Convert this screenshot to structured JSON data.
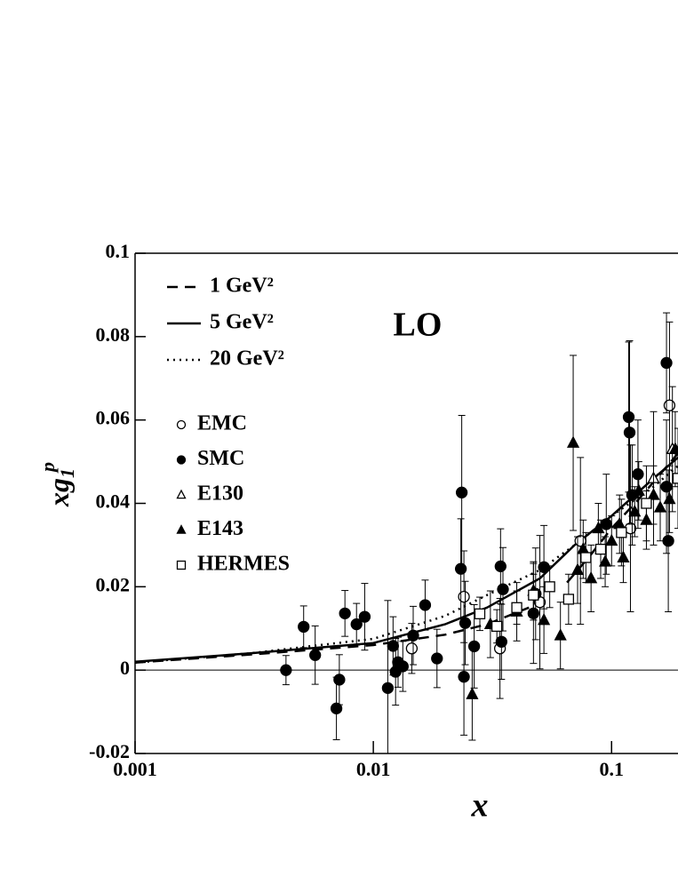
{
  "chart_data": {
    "type": "scatter",
    "annotation": "LO",
    "xlabel": "x",
    "ylabel": {
      "text": "xg",
      "subscript": "1",
      "superscript": "p"
    },
    "xscale": "log",
    "xlim": [
      0.001,
      0.19
    ],
    "ylim": [
      -0.02,
      0.1
    ],
    "xticks": [
      0.001,
      0.01,
      0.1
    ],
    "yticks": [
      0.1,
      0.08,
      0.06,
      0.04,
      0.02,
      0,
      -0.02
    ],
    "zero_line": true,
    "lines": [
      {
        "name": "1 GeV²",
        "dash": "dashed",
        "color": "#000",
        "x": [
          0.001,
          0.003,
          0.01,
          0.02,
          0.03,
          0.045,
          null,
          0.065,
          0.08,
          0.1,
          0.13,
          0.16,
          0.19
        ],
        "values": [
          0.0018,
          0.0037,
          0.006,
          0.0085,
          0.011,
          0.015,
          null,
          0.021,
          0.027,
          0.034,
          0.041,
          0.047,
          0.052
        ]
      },
      {
        "name": "5 GeV²",
        "dash": "solid",
        "color": "#000",
        "x": [
          0.001,
          0.003,
          0.01,
          0.02,
          0.03,
          0.05,
          0.07,
          0.1,
          0.15,
          0.19
        ],
        "values": [
          0.002,
          0.004,
          0.0065,
          0.011,
          0.015,
          0.022,
          0.03,
          0.037,
          0.046,
          0.051
        ]
      },
      {
        "name": "20 GeV²",
        "dash": "dotted",
        "color": "#000",
        "x": [
          0.001,
          0.003,
          0.01,
          0.02,
          0.03,
          0.05,
          0.07,
          0.1,
          0.15,
          0.19
        ],
        "values": [
          0.0018,
          0.004,
          0.0075,
          0.013,
          0.018,
          0.024,
          0.03,
          0.037,
          0.044,
          0.049
        ]
      }
    ],
    "series": [
      {
        "name": "EMC",
        "marker": "circle",
        "filled": false,
        "color": "#000",
        "x": [
          0.0145,
          0.024,
          0.034,
          0.05,
          0.074,
          0.12,
          0.175
        ],
        "values": [
          0.0052,
          0.0176,
          0.0052,
          0.0163,
          0.031,
          0.034,
          0.0635
        ],
        "errors": [
          0.006,
          0.011,
          0.012,
          0.016,
          0.02,
          0.02,
          0.02
        ]
      },
      {
        "name": "SMC",
        "marker": "circle",
        "filled": true,
        "color": "#000",
        "x": [
          0.0043,
          0.0051,
          0.0057,
          0.007,
          0.0072,
          0.0076,
          0.0085,
          0.0092,
          0.0115,
          0.0121,
          0.0124,
          0.0127,
          0.0133,
          0.0147,
          0.0165,
          0.0185,
          0.0235,
          0.0233,
          0.024,
          0.0243,
          0.0265,
          0.0342,
          0.035,
          0.0345,
          0.047,
          0.048,
          0.052,
          0.095,
          0.118,
          0.119,
          0.122,
          0.129,
          0.17,
          0.17,
          0.173
        ],
        "values": [
          0,
          0.0104,
          0.0036,
          -0.0092,
          -0.0023,
          0.0136,
          0.011,
          0.0128,
          -0.0043,
          0.0058,
          -0.0004,
          0.0019,
          0.0009,
          0.0083,
          0.0156,
          0.0028,
          0.0426,
          0.0243,
          -0.0016,
          0.0113,
          0.0057,
          0.0249,
          0.0194,
          0.0068,
          0.0136,
          0.0183,
          0.0247,
          0.035,
          0.0607,
          0.057,
          0.042,
          0.047,
          0.0737,
          0.044,
          0.031
        ],
        "errors": [
          0.0035,
          0.005,
          0.007,
          0.0075,
          0.006,
          0.0055,
          0.005,
          0.008,
          0.021,
          0.007,
          0.008,
          0.006,
          0.006,
          0.007,
          0.006,
          0.007,
          0.0185,
          0.012,
          0.014,
          0.01,
          0.01,
          0.009,
          0.01,
          0.009,
          0.012,
          0.011,
          0.01,
          0.012,
          0.018,
          0.022,
          0.012,
          0.013,
          0.012,
          0.016,
          0.017
        ]
      },
      {
        "name": "E130",
        "marker": "triangle",
        "filled": false,
        "color": "#000",
        "x": [
          0.15,
          0.18
        ],
        "values": [
          0.046,
          0.053
        ],
        "errors": [
          0.016,
          0.015
        ]
      },
      {
        "name": "E143",
        "marker": "triangle",
        "filled": true,
        "color": "#000",
        "x": [
          0.026,
          0.031,
          0.04,
          0.047,
          0.052,
          0.061,
          0.069,
          0.072,
          0.076,
          0.082,
          0.088,
          0.094,
          0.1,
          0.108,
          0.112,
          0.125,
          0.13,
          0.14,
          0.15,
          0.16,
          0.175,
          0.185
        ],
        "values": [
          -0.0058,
          0.011,
          0.014,
          0.019,
          0.012,
          0.0083,
          0.0545,
          0.024,
          0.029,
          0.022,
          0.034,
          0.026,
          0.031,
          0.035,
          0.027,
          0.038,
          0.043,
          0.036,
          0.042,
          0.039,
          0.041,
          0.053
        ],
        "errors": [
          0.011,
          0.008,
          0.007,
          0.007,
          0.008,
          0.008,
          0.021,
          0.008,
          0.007,
          0.008,
          0.006,
          0.006,
          0.006,
          0.007,
          0.006,
          0.006,
          0.007,
          0.007,
          0.007,
          0.008,
          0.008,
          0.009
        ]
      },
      {
        "name": "HERMES",
        "marker": "square",
        "filled": false,
        "color": "#000",
        "x": [
          0.028,
          0.033,
          0.04,
          0.047,
          0.055,
          0.066,
          0.078,
          0.09,
          0.11,
          0.14,
          0.19
        ],
        "values": [
          0.0135,
          0.0105,
          0.015,
          0.018,
          0.02,
          0.017,
          0.027,
          0.029,
          0.033,
          0.04,
          0.046
        ],
        "errors": [
          0.004,
          0.004,
          0.004,
          0.005,
          0.005,
          0.006,
          0.006,
          0.007,
          0.008,
          0.009,
          0.012
        ]
      }
    ]
  }
}
